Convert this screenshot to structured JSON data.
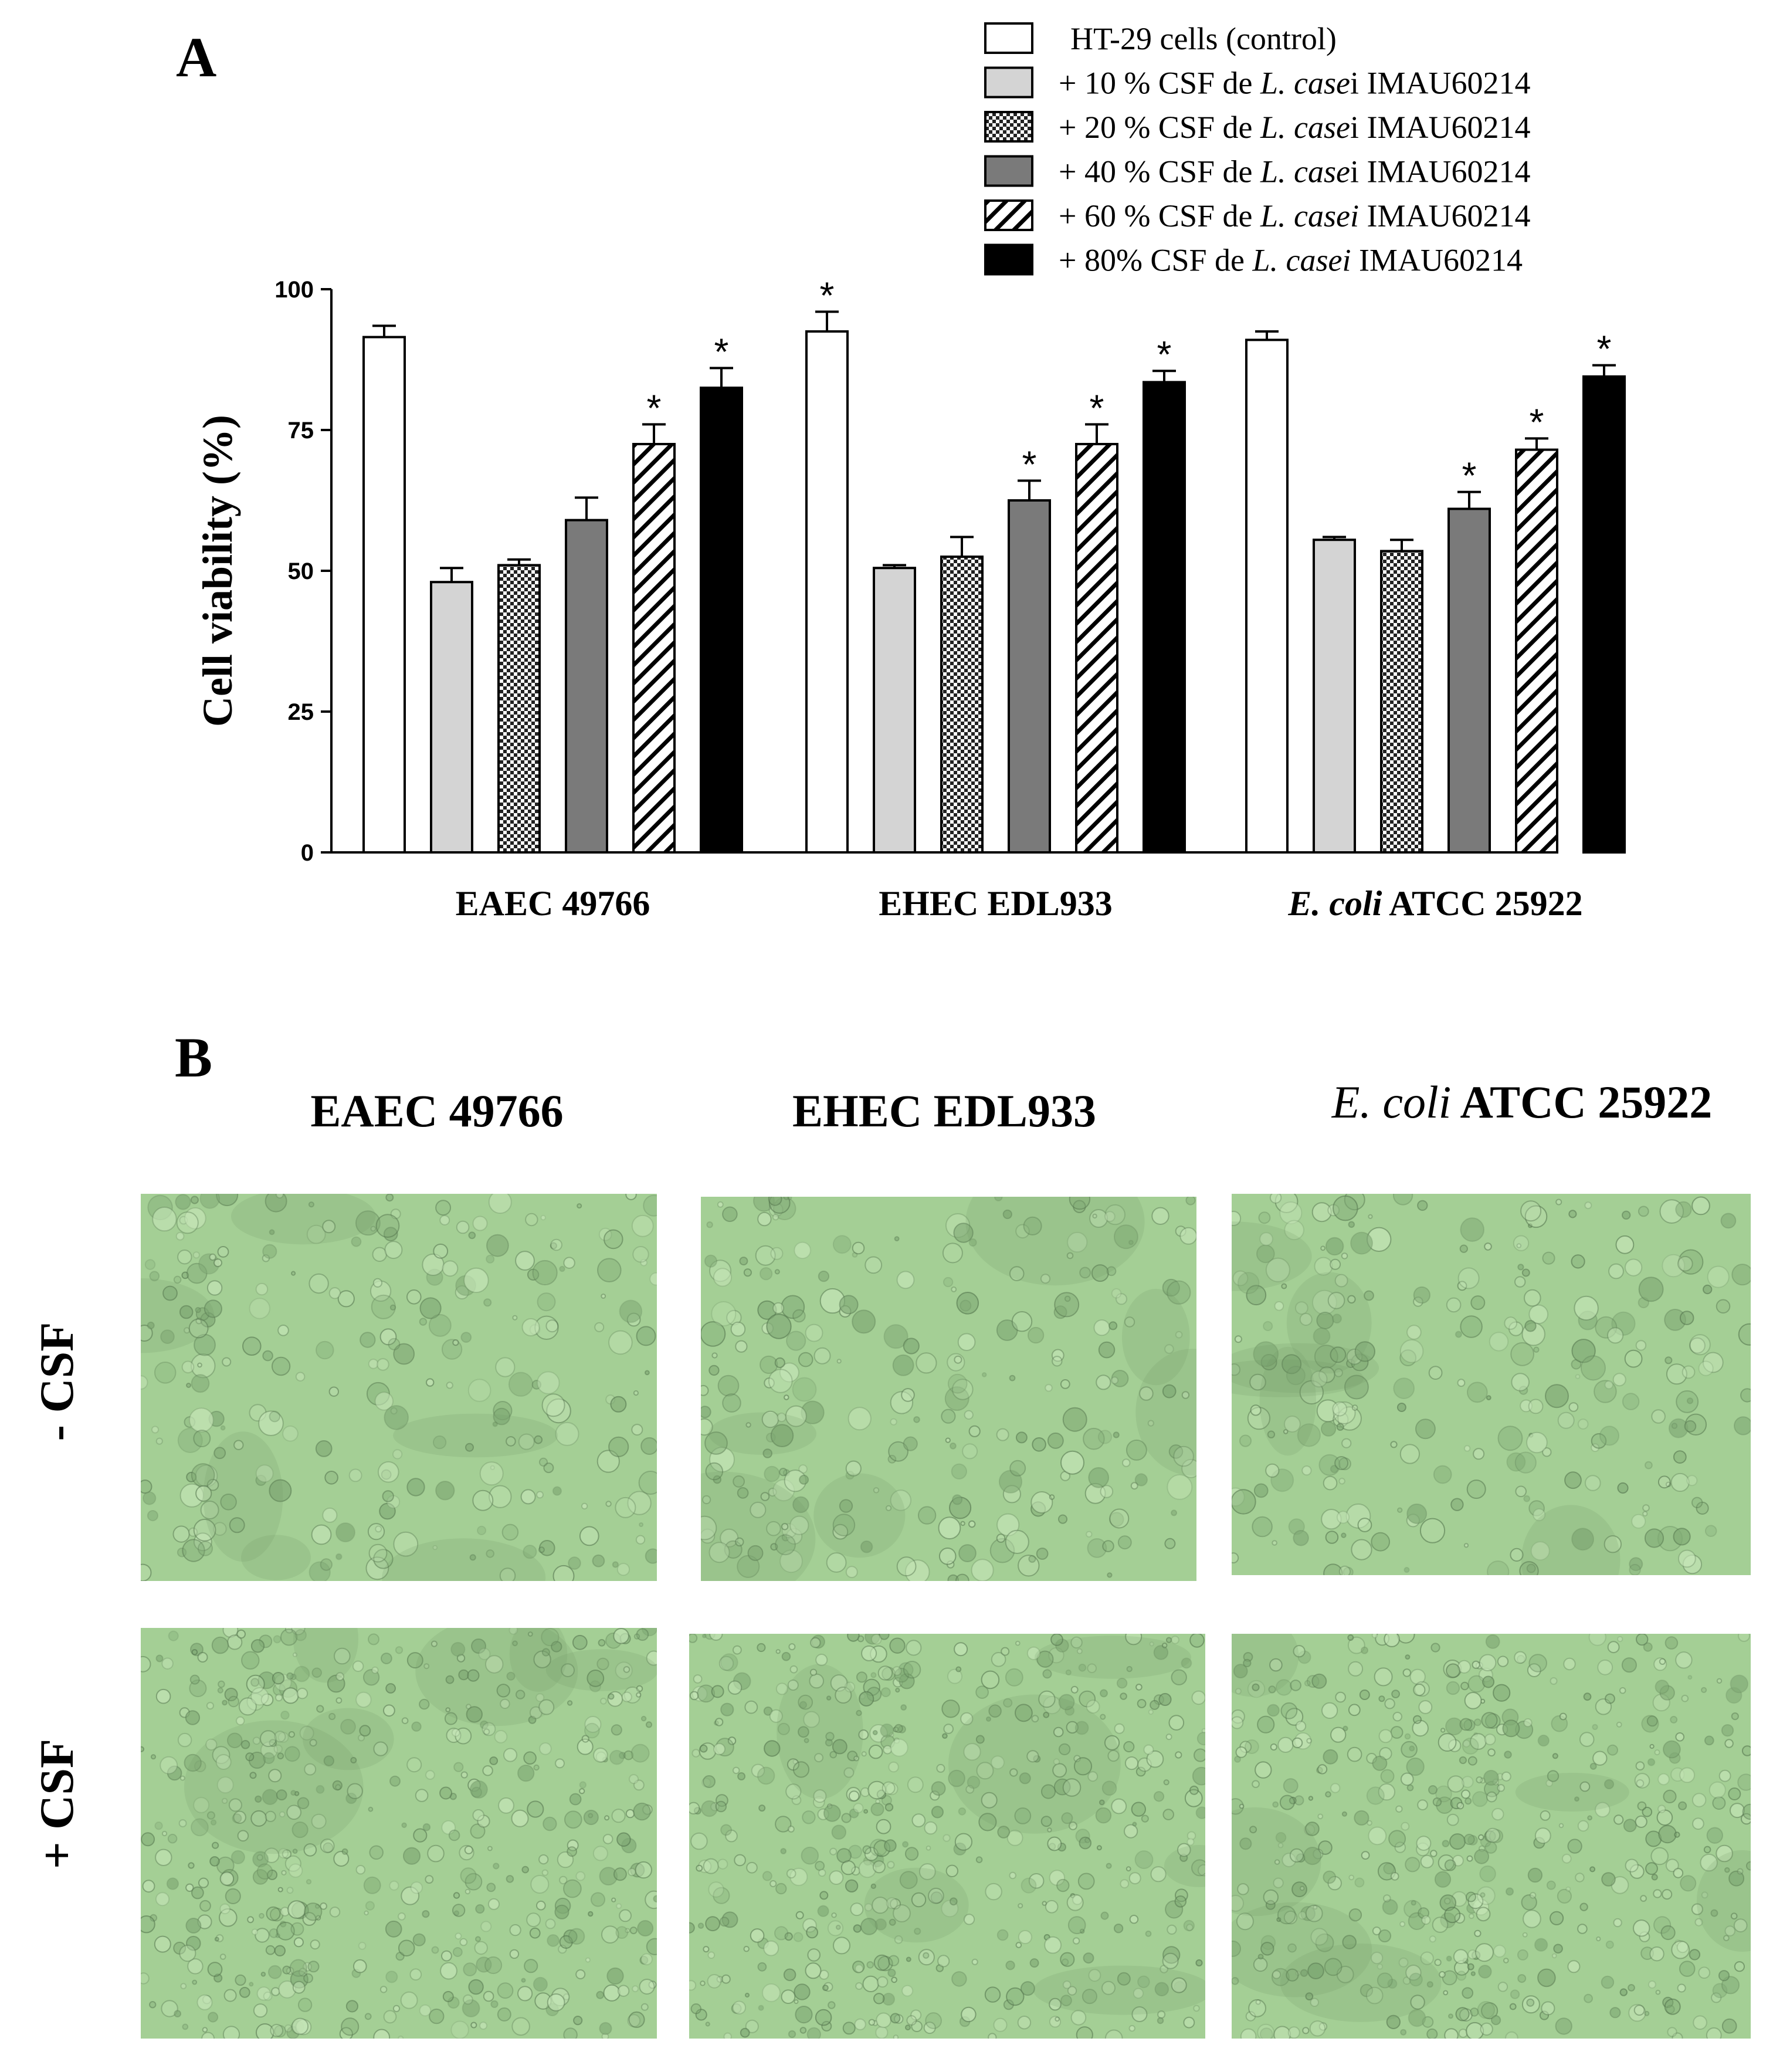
{
  "panels": {
    "a_label": "A",
    "b_label": "B"
  },
  "chart_data": {
    "type": "bar",
    "ylabel": "Cell viability (%)",
    "xlabel": "",
    "ylim": [
      0,
      100
    ],
    "yticks": [
      0,
      25,
      50,
      75,
      100
    ],
    "grid": false,
    "legend_position": "top-right",
    "categories": [
      "EAEC 49766",
      "EHEC EDL933",
      "E. coli ATCC 25922"
    ],
    "category_labels": [
      {
        "italic": "",
        "plain": "EAEC 49766"
      },
      {
        "italic": "",
        "plain": "EHEC EDL933"
      },
      {
        "italic": "E. coli",
        "plain": " ATCC 25922"
      }
    ],
    "series": [
      {
        "name": "HT-29 cells (control)",
        "legend_prefix": "",
        "legend_italic": "",
        "legend_suffix": "",
        "fill": "white",
        "values": [
          91.5,
          92.5,
          91.0
        ],
        "errors": [
          2.0,
          3.5,
          1.5
        ],
        "significant": [
          false,
          true,
          false
        ]
      },
      {
        "name": "+ 10 % CSF de L. casei IMAU60214",
        "legend_prefix": "+ 10 % CSF de ",
        "legend_italic": "L. case",
        "legend_suffix": "i IMAU60214",
        "fill": "lightgray",
        "values": [
          48.0,
          50.5,
          55.5
        ],
        "errors": [
          2.5,
          0.5,
          0.5
        ],
        "significant": [
          false,
          false,
          false
        ]
      },
      {
        "name": "+ 20 % CSF de L. casei IMAU60214",
        "legend_prefix": "+ 20 % CSF de ",
        "legend_italic": "L. case",
        "legend_suffix": "i IMAU60214",
        "fill": "checker",
        "values": [
          51.0,
          52.5,
          53.5
        ],
        "errors": [
          1.0,
          3.5,
          2.0
        ],
        "significant": [
          false,
          false,
          false
        ]
      },
      {
        "name": "+ 40 % CSF de L. casei IMAU60214",
        "legend_prefix": "+ 40 % CSF de ",
        "legend_italic": "L. case",
        "legend_suffix": "i IMAU60214",
        "fill": "gray",
        "values": [
          59.0,
          62.5,
          61.0
        ],
        "errors": [
          4.0,
          3.5,
          3.0
        ],
        "significant": [
          false,
          true,
          true
        ]
      },
      {
        "name": "+ 60 % CSF de L. casei IMAU60214",
        "legend_prefix": "+ 60 % CSF de ",
        "legend_italic": "L. casei",
        "legend_suffix": " IMAU60214",
        "fill": "hatch",
        "values": [
          72.5,
          72.5,
          71.5
        ],
        "errors": [
          3.5,
          3.5,
          2.0
        ],
        "significant": [
          true,
          true,
          true
        ]
      },
      {
        "name": "+ 80%  CSF de L. casei IMAU60214",
        "legend_prefix": "+ 80%  CSF de ",
        "legend_italic": "L. casei",
        "legend_suffix": " IMAU60214",
        "fill": "black",
        "values": [
          82.5,
          83.5,
          84.5
        ],
        "errors": [
          3.5,
          2.0,
          2.0
        ],
        "significant": [
          true,
          true,
          true
        ]
      }
    ],
    "significance_marker": "*"
  },
  "micrographs": {
    "column_titles": [
      {
        "italic": "",
        "plain": "EAEC 49766"
      },
      {
        "italic": "",
        "plain": "EHEC EDL933"
      },
      {
        "italic": "E. coli",
        "plain": " ATCC 25922"
      }
    ],
    "row_titles": [
      "- CSF",
      "+ CSF"
    ],
    "tint_color": "#a4cf95"
  },
  "colors": {
    "light_gray": "#d4d4d4",
    "mid_gray": "#7a7a7a",
    "black": "#000000"
  }
}
